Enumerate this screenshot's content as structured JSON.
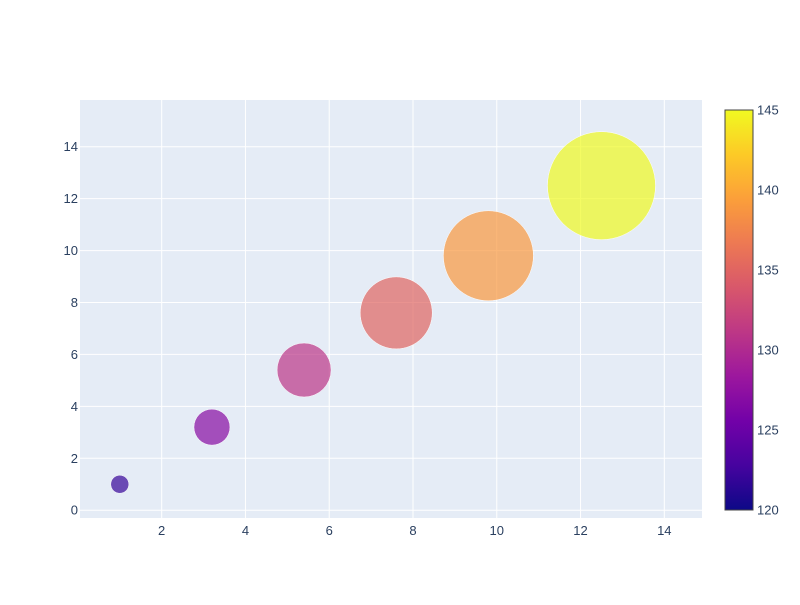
{
  "chart_data": {
    "type": "scatter",
    "subtype": "bubble",
    "title": "",
    "xlabel": "",
    "ylabel": "",
    "xlim": [
      0.05,
      14.9
    ],
    "ylim": [
      -0.3,
      15.8
    ],
    "x_ticks": [
      2,
      4,
      6,
      8,
      10,
      12,
      14
    ],
    "y_ticks": [
      0,
      2,
      4,
      6,
      8,
      10,
      12,
      14
    ],
    "grid": true,
    "legend": "none",
    "points": [
      {
        "x": 1.0,
        "y": 1.0,
        "size": 1,
        "color_value": 122
      },
      {
        "x": 3.2,
        "y": 3.2,
        "size": 4,
        "color_value": 127
      },
      {
        "x": 5.4,
        "y": 5.4,
        "size": 9,
        "color_value": 131
      },
      {
        "x": 7.6,
        "y": 7.6,
        "size": 16,
        "color_value": 135
      },
      {
        "x": 9.8,
        "y": 9.8,
        "size": 25,
        "color_value": 139
      },
      {
        "x": 12.5,
        "y": 12.5,
        "size": 36,
        "color_value": 145
      }
    ],
    "colorbar": {
      "range": [
        120,
        145
      ],
      "ticks": [
        120,
        125,
        130,
        135,
        140,
        145
      ],
      "colorscale": [
        "#0d0887",
        "#46039f",
        "#7201a8",
        "#9c179e",
        "#bd3786",
        "#d8576b",
        "#ed7953",
        "#fb9f3a",
        "#fdca26",
        "#f0f921"
      ]
    },
    "colors": {
      "plot_background": "#e5ecf6",
      "grid": "#ffffff",
      "text": "#2a3f5f"
    }
  }
}
